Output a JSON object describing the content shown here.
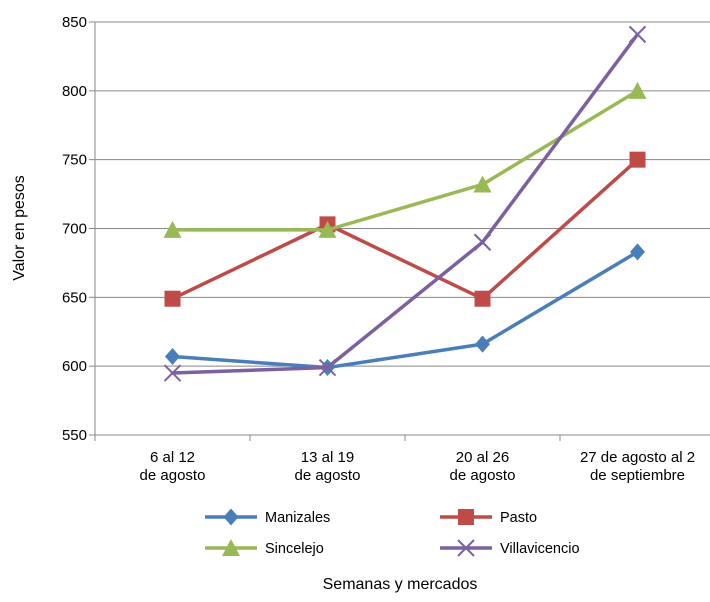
{
  "chart_data": {
    "type": "line",
    "title": "",
    "xlabel": "Semanas y mercados",
    "ylabel": "Valor en pesos",
    "ylim": [
      550,
      850
    ],
    "yticks": [
      550,
      600,
      650,
      700,
      750,
      800,
      850
    ],
    "ytick_labels": [
      "550",
      "600",
      "650",
      "700",
      "750",
      "800",
      "850"
    ],
    "grid": "horizontal",
    "legend_position": "bottom",
    "categories": [
      [
        "6 al 12",
        "de agosto"
      ],
      [
        "13 al 19",
        "de agosto"
      ],
      [
        "20 al 26",
        "de agosto"
      ],
      [
        "27 de agosto al 2",
        "de septiembre"
      ]
    ],
    "series": [
      {
        "name": "Manizales",
        "values": [
          607,
          599,
          616,
          683
        ],
        "color": "#4A7EBB",
        "marker": "diamond"
      },
      {
        "name": "Pasto",
        "values": [
          649,
          703,
          649,
          750
        ],
        "color": "#BE4B48",
        "marker": "square"
      },
      {
        "name": "Sincelejo",
        "values": [
          699,
          699,
          732,
          800
        ],
        "color": "#98B954",
        "marker": "triangle"
      },
      {
        "name": "Villavicencio",
        "values": [
          595,
          599,
          690,
          841
        ],
        "color": "#7D60A0",
        "marker": "x"
      }
    ]
  }
}
